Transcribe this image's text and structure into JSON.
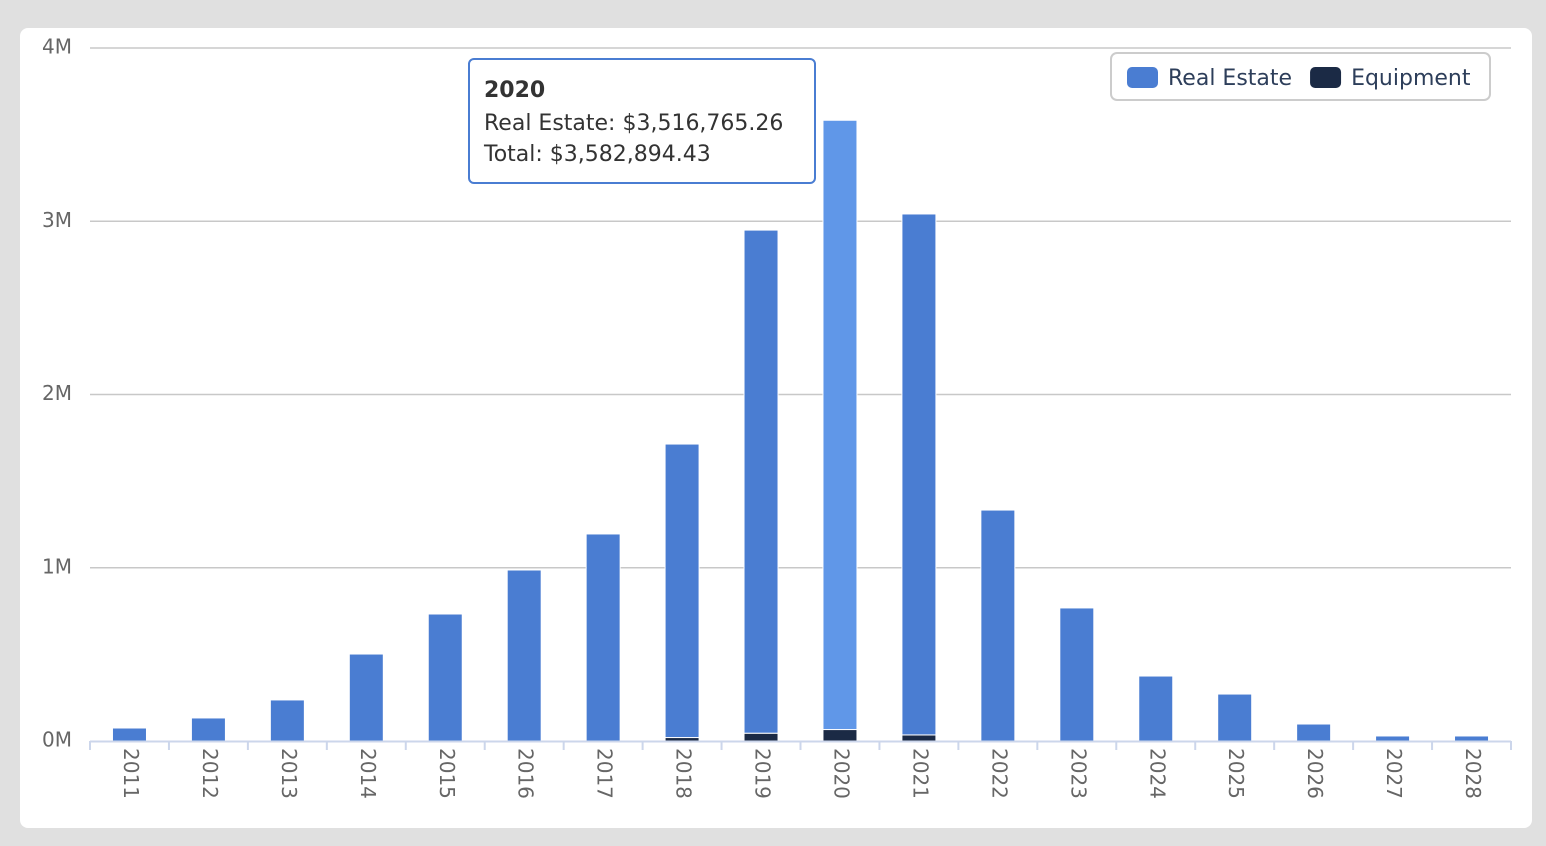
{
  "chart_data": {
    "type": "stacked-bar",
    "categories": [
      "2011",
      "2012",
      "2013",
      "2014",
      "2015",
      "2016",
      "2017",
      "2018",
      "2019",
      "2020",
      "2021",
      "2022",
      "2023",
      "2024",
      "2025",
      "2026",
      "2027",
      "2028"
    ],
    "series": [
      {
        "name": "Real Estate",
        "color": "#4a7dd2",
        "values": [
          75000,
          133000,
          237000,
          502000,
          733000,
          987000,
          1195000,
          1694000,
          2904000,
          3516765.26,
          3007000,
          1333000,
          768000,
          375000,
          271000,
          98000,
          29000,
          29000
        ]
      },
      {
        "name": "Equipment",
        "color": "#1b2a45",
        "values": [
          0,
          0,
          0,
          0,
          0,
          0,
          0,
          20000,
          45000,
          66129.17,
          35000,
          0,
          0,
          0,
          0,
          0,
          0,
          0
        ]
      }
    ],
    "ylim": [
      0,
      4000000
    ],
    "yticks": [
      {
        "value": 0,
        "label": "0M"
      },
      {
        "value": 1000000,
        "label": "1M"
      },
      {
        "value": 2000000,
        "label": "2M"
      },
      {
        "value": 3000000,
        "label": "3M"
      },
      {
        "value": 4000000,
        "label": "4M"
      }
    ],
    "grid": true,
    "legend": "top-right",
    "tooltip": {
      "title": "2020",
      "lines": [
        "Real Estate: $3,516,765.26",
        "Total: $3,582,894.43"
      ],
      "highlight_color": "#6097e8"
    }
  }
}
